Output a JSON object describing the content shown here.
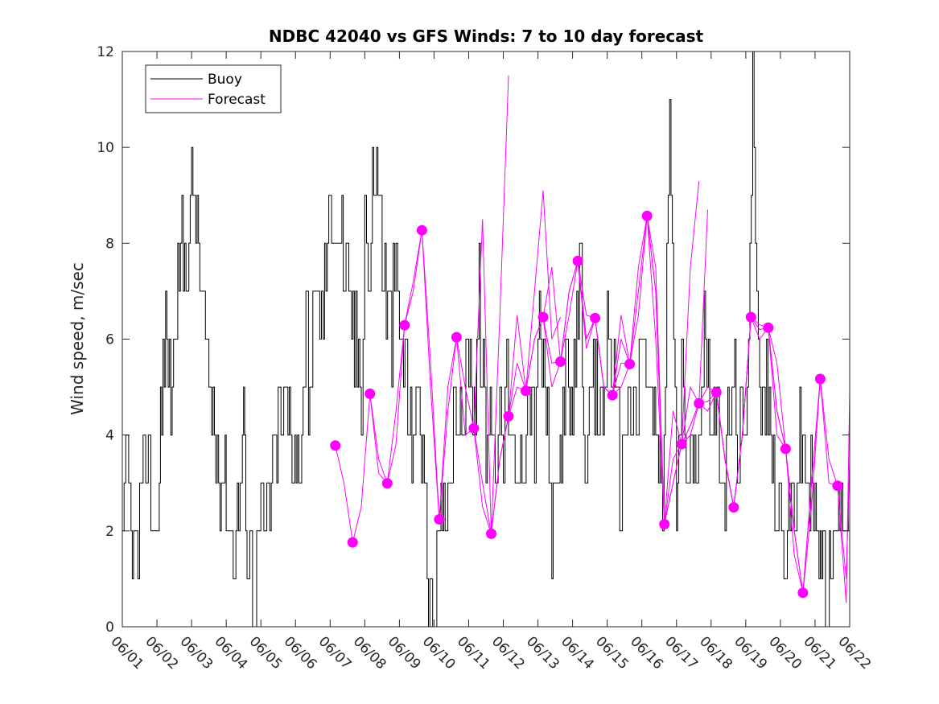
{
  "chart_data": {
    "type": "line",
    "title": "NDBC 42040 vs GFS Winds: 7 to 10 day forecast",
    "ylabel": "Wind speed, m/sec",
    "xlabel": "",
    "ylim": [
      0,
      12
    ],
    "yticks": [
      0,
      2,
      4,
      6,
      8,
      10,
      12
    ],
    "xlim": [
      0,
      21
    ],
    "xtick_labels": [
      "06/01",
      "06/02",
      "06/03",
      "06/04",
      "06/05",
      "06/06",
      "06/07",
      "06/08",
      "06/09",
      "06/10",
      "06/11",
      "06/12",
      "06/13",
      "06/14",
      "06/15",
      "06/16",
      "06/17",
      "06/18",
      "06/19",
      "06/20",
      "06/21",
      "06/22"
    ],
    "legend": {
      "position": "top-left",
      "entries": [
        "Buoy",
        "Forecast"
      ]
    },
    "colors": {
      "buoy": "#000000",
      "forecast": "#ff00ff"
    },
    "buoy_keypoints": {
      "x": [
        0.0,
        0.05,
        0.15,
        0.25,
        0.4,
        0.5,
        0.6,
        0.75,
        0.9,
        1.0,
        1.1,
        1.25,
        1.4,
        1.6,
        1.8,
        2.0,
        2.2,
        2.4,
        2.5,
        2.7,
        2.9,
        3.0,
        3.2,
        3.4,
        3.5,
        3.6,
        3.8,
        4.0,
        4.3,
        4.5,
        4.7,
        4.9,
        5.1,
        5.3,
        5.45,
        5.55,
        5.6,
        5.7,
        5.8,
        6.0,
        6.3,
        6.5,
        6.7,
        6.9,
        7.0,
        7.1,
        7.3,
        7.5,
        7.7,
        7.9,
        8.0,
        8.2,
        8.4,
        8.6,
        8.8,
        9.0,
        9.2,
        9.4,
        9.6,
        9.8,
        10.0,
        10.2,
        10.3,
        10.5,
        10.7,
        10.8,
        10.9,
        11.0,
        11.1,
        11.2,
        11.3,
        11.5,
        11.7,
        11.9,
        12.0,
        12.2,
        12.4,
        12.6,
        12.8,
        13.0,
        13.2,
        13.4,
        13.6,
        13.8,
        14.0,
        14.2,
        14.4,
        14.6,
        14.8,
        15.0,
        15.2,
        15.4,
        15.6,
        15.8,
        16.0,
        16.1,
        16.2,
        16.4,
        16.6,
        16.8,
        17.0,
        17.2,
        17.4,
        17.6,
        17.8,
        18.0,
        18.2,
        18.4,
        18.6,
        18.8,
        19.0,
        19.1,
        19.2,
        19.4,
        19.6,
        19.8,
        20.0,
        20.3,
        20.6,
        21.0
      ],
      "y": [
        1,
        2,
        3,
        2,
        1.5,
        2,
        3,
        4,
        2,
        2,
        4,
        6,
        5,
        7,
        8,
        9,
        8,
        6,
        5,
        4,
        3,
        3,
        2,
        3,
        4,
        2,
        1,
        2,
        3,
        4,
        5,
        4,
        3,
        6,
        5,
        7,
        8,
        6,
        7,
        9,
        8,
        7,
        6,
        5,
        9,
        7,
        10,
        8,
        6,
        7,
        6,
        5,
        4,
        5,
        1,
        0,
        2,
        3,
        5,
        4,
        6,
        5,
        7,
        4,
        5,
        3,
        6,
        4,
        5,
        4,
        3,
        3,
        5,
        4,
        6,
        5,
        2,
        3,
        5,
        4,
        8,
        3,
        5,
        4,
        6,
        5,
        3,
        5,
        4,
        6,
        5,
        4,
        2,
        11,
        3,
        4,
        5,
        3,
        4,
        6,
        5,
        4,
        3,
        5,
        4,
        3,
        12,
        4,
        5,
        3,
        2,
        1,
        2,
        3,
        4,
        3,
        2,
        1,
        2,
        3
      ]
    },
    "forecast_markers": {
      "x": [
        6.15,
        6.65,
        7.15,
        7.65,
        8.15,
        8.65,
        9.15,
        9.65,
        10.15,
        10.65,
        11.15,
        11.65,
        12.15,
        12.65,
        13.15,
        13.65,
        14.15,
        14.65,
        15.15,
        15.65,
        16.15,
        16.65,
        17.15,
        17.65,
        18.15,
        18.65,
        19.15,
        19.65,
        20.15,
        20.65
      ],
      "y": [
        3.78,
        1.76,
        4.86,
        2.99,
        6.29,
        8.27,
        2.24,
        6.04,
        4.14,
        1.94,
        4.39,
        4.92,
        6.46,
        5.53,
        7.63,
        6.44,
        4.83,
        5.48,
        8.57,
        2.14,
        3.81,
        4.66,
        4.89,
        2.49,
        6.46,
        6.24,
        3.71,
        0.71,
        5.17,
        2.94
      ]
    },
    "forecast_traces": [
      {
        "x": [
          6.15,
          6.4,
          6.65,
          6.9,
          7.15,
          7.4,
          7.65,
          7.9,
          8.15
        ],
        "y": [
          3.78,
          3.0,
          1.76,
          2.5,
          4.86,
          3.5,
          2.99,
          3.8,
          6.29
        ]
      },
      {
        "x": [
          7.15,
          7.4,
          7.65,
          7.9,
          8.15,
          8.4,
          8.65,
          8.9,
          9.15
        ],
        "y": [
          4.86,
          3.2,
          2.99,
          4.5,
          6.29,
          7.2,
          8.27,
          5.0,
          2.24
        ]
      },
      {
        "x": [
          8.15,
          8.4,
          8.65,
          8.9,
          9.15,
          9.4,
          9.65,
          9.9,
          10.15,
          10.4,
          10.65,
          10.9,
          11.15
        ],
        "y": [
          6.29,
          7.0,
          8.27,
          5.5,
          2.24,
          4.5,
          6.04,
          5.0,
          4.14,
          8.5,
          1.94,
          6.5,
          11.5
        ]
      },
      {
        "x": [
          9.15,
          9.4,
          9.65,
          9.9,
          10.15,
          10.4,
          10.65,
          10.9,
          11.15,
          11.4,
          11.65,
          11.9,
          12.15,
          12.4,
          12.65
        ],
        "y": [
          2.24,
          5.0,
          6.04,
          4.0,
          4.14,
          3.0,
          1.94,
          3.5,
          4.39,
          6.5,
          4.92,
          7.0,
          9.1,
          6.0,
          6.46
        ]
      },
      {
        "x": [
          10.15,
          10.4,
          10.65,
          10.9,
          11.15,
          11.4,
          11.65,
          11.9,
          12.15,
          12.4,
          12.65,
          12.9,
          13.15,
          13.4,
          13.65
        ],
        "y": [
          4.14,
          2.5,
          1.94,
          3.5,
          4.39,
          5.5,
          4.92,
          6.0,
          6.46,
          7.5,
          5.53,
          7.0,
          7.63,
          6.0,
          6.44
        ]
      },
      {
        "x": [
          11.15,
          11.4,
          11.65,
          11.9,
          12.15,
          12.4,
          12.65,
          12.9,
          13.15,
          13.4,
          13.65,
          13.9,
          14.15,
          14.4,
          14.65
        ],
        "y": [
          4.39,
          5.0,
          4.92,
          6.0,
          6.46,
          5.0,
          5.53,
          6.5,
          7.63,
          5.8,
          6.44,
          5.0,
          4.83,
          6.0,
          5.48
        ]
      },
      {
        "x": [
          12.15,
          12.4,
          12.65,
          12.9,
          13.15,
          13.4,
          13.65,
          13.9,
          14.15,
          14.4,
          14.65,
          14.9,
          15.15,
          15.4,
          15.65,
          15.9,
          16.15,
          16.4,
          16.65
        ],
        "y": [
          6.46,
          5.5,
          5.53,
          7.0,
          7.63,
          6.5,
          6.44,
          5.0,
          4.83,
          6.5,
          5.48,
          7.5,
          8.57,
          7.0,
          2.14,
          4.5,
          3.81,
          7.5,
          9.3
        ]
      },
      {
        "x": [
          13.15,
          13.4,
          13.65,
          13.9,
          14.15,
          14.4,
          14.65,
          14.9,
          15.15,
          15.4,
          15.65,
          15.9,
          16.15,
          16.4,
          16.65,
          16.9
        ],
        "y": [
          7.63,
          6.0,
          6.44,
          5.0,
          4.83,
          5.5,
          5.48,
          7.0,
          8.57,
          7.5,
          2.14,
          3.5,
          3.81,
          5.0,
          4.66,
          8.7
        ]
      },
      {
        "x": [
          14.15,
          14.4,
          14.65,
          14.9,
          15.15,
          15.4,
          15.65,
          15.9,
          16.15,
          16.4,
          16.65,
          16.9,
          17.15,
          17.4,
          17.65,
          17.9,
          18.15
        ],
        "y": [
          4.83,
          5.0,
          5.48,
          6.5,
          8.57,
          7.0,
          2.14,
          3.0,
          3.81,
          4.2,
          4.66,
          4.5,
          4.89,
          3.5,
          2.49,
          4.0,
          6.46
        ]
      },
      {
        "x": [
          15.15,
          15.4,
          15.65,
          15.9,
          16.15,
          16.4,
          16.65,
          16.9,
          17.15,
          17.4,
          17.65,
          17.9,
          18.15,
          18.4,
          18.65,
          18.9,
          19.15
        ],
        "y": [
          8.57,
          6.0,
          2.14,
          3.0,
          3.81,
          4.0,
          4.66,
          5.0,
          4.89,
          3.5,
          2.49,
          4.0,
          6.46,
          6.0,
          6.24,
          5.5,
          3.71
        ]
      },
      {
        "x": [
          16.15,
          16.4,
          16.65,
          16.9,
          17.15,
          17.4,
          17.65,
          17.9,
          18.15,
          18.4,
          18.65,
          18.9,
          19.15,
          19.4,
          19.65,
          19.9,
          20.15
        ],
        "y": [
          3.81,
          4.2,
          4.66,
          4.7,
          4.89,
          3.5,
          2.49,
          4.0,
          6.46,
          6.2,
          6.24,
          4.5,
          3.71,
          2.0,
          0.71,
          3.0,
          5.17
        ]
      },
      {
        "x": [
          17.15,
          17.4,
          17.65,
          17.9,
          18.15,
          18.4,
          18.65,
          18.9,
          19.15,
          19.4,
          19.65,
          19.9,
          20.15,
          20.4,
          20.65,
          20.9,
          21.0
        ],
        "y": [
          4.89,
          3.5,
          2.49,
          4.0,
          6.46,
          6.2,
          6.24,
          4.5,
          3.71,
          2.0,
          0.71,
          3.0,
          5.17,
          3.5,
          2.94,
          1.0,
          3.5
        ]
      },
      {
        "x": [
          18.15,
          18.4,
          18.65,
          18.9,
          19.15,
          19.4,
          19.65,
          19.9,
          20.15,
          20.4,
          20.65,
          20.9,
          21.0
        ],
        "y": [
          6.46,
          6.3,
          6.24,
          4.0,
          3.71,
          1.5,
          0.71,
          2.5,
          5.17,
          3.0,
          2.94,
          0.5,
          4.9
        ]
      }
    ]
  }
}
